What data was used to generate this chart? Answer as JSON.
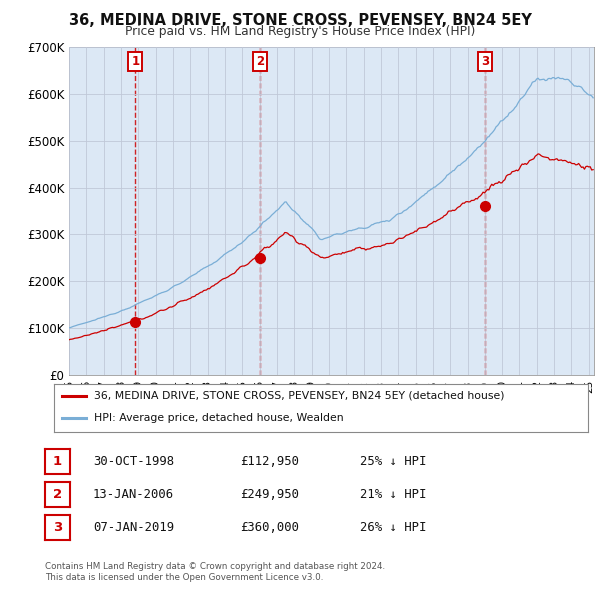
{
  "title": "36, MEDINA DRIVE, STONE CROSS, PEVENSEY, BN24 5EY",
  "subtitle": "Price paid vs. HM Land Registry's House Price Index (HPI)",
  "legend_line1": "36, MEDINA DRIVE, STONE CROSS, PEVENSEY, BN24 5EY (detached house)",
  "legend_line2": "HPI: Average price, detached house, Wealden",
  "footer1": "Contains HM Land Registry data © Crown copyright and database right 2024.",
  "footer2": "This data is licensed under the Open Government Licence v3.0.",
  "sale_labels": [
    "1",
    "2",
    "3"
  ],
  "sale_dates": [
    "30-OCT-1998",
    "13-JAN-2006",
    "07-JAN-2019"
  ],
  "sale_prices_str": [
    "£112,950",
    "£249,950",
    "£360,000"
  ],
  "sale_hpi_str": [
    "25% ↓ HPI",
    "21% ↓ HPI",
    "26% ↓ HPI"
  ],
  "sale_years": [
    1998.83,
    2006.04,
    2019.02
  ],
  "sale_prices": [
    112950,
    249950,
    360000
  ],
  "ylim": [
    0,
    700000
  ],
  "yticks": [
    0,
    100000,
    200000,
    300000,
    400000,
    500000,
    600000,
    700000
  ],
  "ytick_labels": [
    "£0",
    "£100K",
    "£200K",
    "£300K",
    "£400K",
    "£500K",
    "£600K",
    "£700K"
  ],
  "background_color": "#ffffff",
  "plot_bg_color": "#dce8f5",
  "red_color": "#cc0000",
  "blue_color": "#7aaed6",
  "grid_color": "#aaaacc",
  "vline_color": "#cc0000",
  "box_color": "#cc0000",
  "fig_width": 6.0,
  "fig_height": 5.9
}
